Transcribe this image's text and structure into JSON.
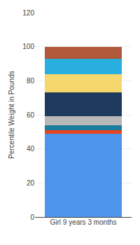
{
  "chart_data": {
    "type": "bar",
    "stacked": true,
    "categories": [
      "Girl 9 years 3 months"
    ],
    "series": [
      {
        "color": "#4d94eb",
        "values": [
          49
        ]
      },
      {
        "color": "#e8431a",
        "values": [
          2
        ]
      },
      {
        "color": "#1a7d9e",
        "values": [
          3
        ]
      },
      {
        "color": "#b8b8b8",
        "values": [
          5
        ]
      },
      {
        "color": "#1e3a5c",
        "values": [
          14
        ]
      },
      {
        "color": "#f5d76e",
        "values": [
          11
        ]
      },
      {
        "color": "#29aee0",
        "values": [
          9
        ]
      },
      {
        "color": "#b0583a",
        "values": [
          7
        ]
      }
    ],
    "ylabel": "Percentile Weight in Pounds",
    "ylim": [
      0,
      120
    ],
    "yticks": [
      0,
      20,
      40,
      60,
      80,
      100,
      120
    ],
    "grid": true
  }
}
